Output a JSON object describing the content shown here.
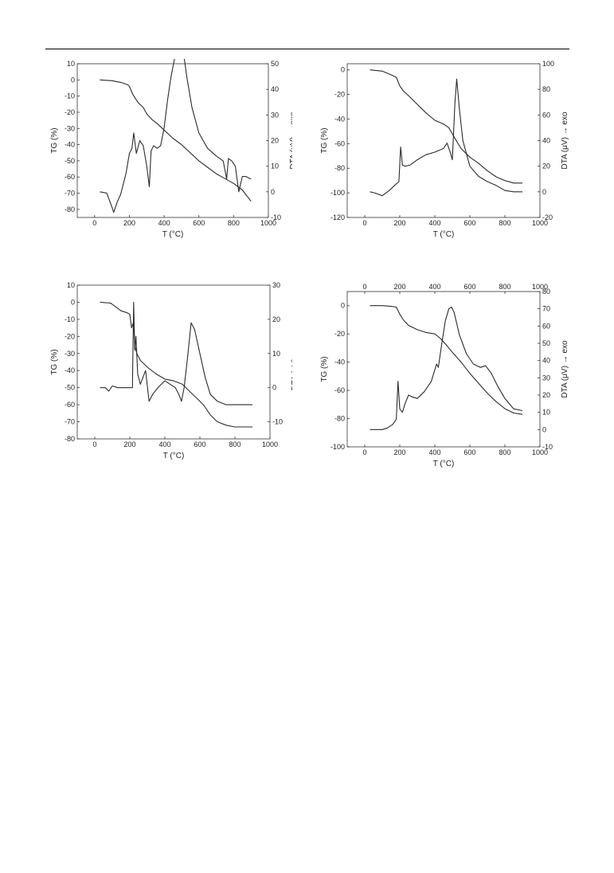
{
  "chart_data": [
    {
      "type": "line",
      "xlabel": "T (°C)",
      "ylabel": "TG (%)",
      "y2label": "DTA (μV)  → exo",
      "xlim": [
        -100,
        1000
      ],
      "ylim": [
        -85,
        10
      ],
      "y2lim": [
        -10,
        50
      ],
      "xticks": [
        0,
        200,
        400,
        600,
        800,
        1000
      ],
      "yticks": [
        10,
        0,
        -10,
        -20,
        -30,
        -40,
        -50,
        -60,
        -70,
        -80
      ],
      "y2ticks": [
        50,
        40,
        30,
        20,
        10,
        0,
        -10
      ],
      "x2_axis": false,
      "series": [
        {
          "axis": "left",
          "x": [
            30,
            100,
            150,
            190,
            200,
            220,
            250,
            280,
            300,
            330,
            360,
            400,
            450,
            500,
            550,
            600,
            650,
            700,
            750,
            800,
            850,
            900
          ],
          "y": [
            0,
            -0.5,
            -1.5,
            -3,
            -4,
            -9,
            -14,
            -17,
            -21,
            -24.5,
            -27,
            -31,
            -36,
            -40,
            -45,
            -50,
            -54,
            -58,
            -61,
            -64,
            -68,
            -75
          ]
        },
        {
          "axis": "right",
          "x": [
            30,
            70,
            100,
            110,
            130,
            150,
            180,
            200,
            215,
            225,
            240,
            260,
            280,
            300,
            315,
            325,
            340,
            360,
            380,
            400,
            420,
            440,
            460,
            480,
            495,
            510,
            530,
            560,
            600,
            650,
            700,
            740,
            760,
            770,
            790,
            810,
            830,
            850,
            870,
            900
          ],
          "y": [
            0,
            -0.5,
            -6,
            -8,
            -4,
            -1,
            7,
            15,
            17,
            23,
            15,
            20,
            18,
            10,
            2,
            16,
            18,
            17,
            18,
            25,
            36,
            45,
            52,
            57,
            59,
            55,
            45,
            33,
            23,
            17,
            14,
            12,
            5,
            13,
            12,
            10,
            0,
            6,
            6,
            5
          ]
        }
      ]
    },
    {
      "type": "line",
      "xlabel": "T (°C)",
      "ylabel": "TG (%)",
      "y2label": "DTA (μV)  → exo",
      "xlim": [
        -100,
        1000
      ],
      "ylim": [
        -120,
        5
      ],
      "y2lim": [
        -20,
        100
      ],
      "xticks": [
        0,
        200,
        400,
        600,
        800,
        1000
      ],
      "yticks": [
        0,
        -20,
        -40,
        -60,
        -80,
        -100,
        -120
      ],
      "y2ticks": [
        100,
        80,
        60,
        40,
        20,
        0,
        -20
      ],
      "x2_axis": false,
      "series": [
        {
          "axis": "left",
          "x": [
            30,
            100,
            150,
            180,
            200,
            220,
            250,
            300,
            350,
            400,
            450,
            480,
            500,
            520,
            550,
            600,
            650,
            700,
            750,
            800,
            850,
            900
          ],
          "y": [
            0,
            -1,
            -4,
            -6,
            -13,
            -17,
            -21,
            -28,
            -35,
            -41,
            -44,
            -47,
            -52,
            -57,
            -64,
            -71,
            -76,
            -82,
            -87,
            -90,
            -92,
            -92
          ]
        },
        {
          "axis": "right",
          "x": [
            30,
            60,
            100,
            140,
            170,
            195,
            205,
            215,
            230,
            260,
            300,
            350,
            400,
            450,
            470,
            490,
            500,
            515,
            525,
            540,
            560,
            600,
            650,
            700,
            750,
            800,
            850,
            900
          ],
          "y": [
            0,
            -1,
            -3,
            1,
            5,
            8,
            35,
            21,
            20,
            21,
            25,
            29,
            31,
            34,
            38,
            30,
            25,
            70,
            88,
            65,
            40,
            20,
            12,
            8,
            5,
            1,
            0,
            0
          ]
        }
      ]
    },
    {
      "type": "line",
      "xlabel": "T (°C)",
      "ylabel": "TG (%)",
      "y2label": "DTA (μV)  → exo",
      "xlim": [
        -100,
        1000
      ],
      "ylim": [
        -80,
        10
      ],
      "y2lim": [
        -15,
        30
      ],
      "xticks": [
        0,
        200,
        400,
        600,
        800,
        1000
      ],
      "yticks": [
        10,
        0,
        -10,
        -20,
        -30,
        -40,
        -50,
        -60,
        -70,
        -80
      ],
      "y2ticks": [
        30,
        20,
        10,
        0,
        -10
      ],
      "x2_axis": false,
      "series": [
        {
          "axis": "left",
          "x": [
            30,
            90,
            110,
            150,
            180,
            200,
            210,
            220,
            230,
            240,
            260,
            300,
            350,
            400,
            450,
            500,
            540,
            580,
            620,
            660,
            700,
            750,
            800,
            850,
            900
          ],
          "y": [
            0,
            -0.5,
            -2,
            -5,
            -6,
            -7,
            -15,
            -12,
            -26,
            -30,
            -34,
            -38,
            -42,
            -45,
            -46,
            -48,
            -52,
            -56,
            -60,
            -66,
            -70,
            -72,
            -73,
            -73,
            -73
          ]
        },
        {
          "axis": "right",
          "x": [
            30,
            60,
            80,
            100,
            130,
            160,
            200,
            215,
            222,
            228,
            235,
            245,
            260,
            275,
            290,
            310,
            330,
            360,
            400,
            430,
            460,
            480,
            495,
            510,
            530,
            550,
            570,
            600,
            630,
            660,
            700,
            750,
            800,
            850,
            900
          ],
          "y": [
            0,
            0,
            -1,
            0.5,
            0,
            0,
            0,
            0,
            25,
            11,
            15,
            4,
            1,
            3,
            5,
            -4,
            -2,
            0,
            2,
            1,
            0,
            -2,
            -4,
            0,
            9,
            19,
            17,
            10,
            3,
            -2,
            -4,
            -5,
            -5,
            -5,
            -5
          ]
        }
      ]
    },
    {
      "type": "line",
      "xlabel": "T (°C)",
      "ylabel": "TG (%)",
      "y2label": "DTA (μV)  → exo",
      "xlim": [
        -100,
        1000
      ],
      "ylim": [
        -100,
        10
      ],
      "y2lim": [
        -10,
        80
      ],
      "xticks": [
        0,
        200,
        400,
        600,
        800,
        1000
      ],
      "yticks": [
        0,
        -20,
        -40,
        -60,
        -80,
        -100
      ],
      "y2ticks": [
        80,
        70,
        60,
        50,
        40,
        30,
        20,
        10,
        0,
        -10
      ],
      "x2_axis": true,
      "x2ticks": [
        0,
        200,
        400,
        600,
        800,
        1000
      ],
      "series": [
        {
          "axis": "left",
          "x": [
            30,
            100,
            150,
            180,
            200,
            220,
            250,
            300,
            350,
            400,
            430,
            460,
            500,
            550,
            600,
            650,
            700,
            750,
            800,
            850,
            900
          ],
          "y": [
            0,
            0,
            -0.5,
            -1,
            -6,
            -10,
            -14,
            -17,
            -19,
            -20,
            -23,
            -27,
            -33,
            -40,
            -48,
            -55,
            -62,
            -68,
            -73,
            -76,
            -77
          ]
        },
        {
          "axis": "right",
          "x": [
            30,
            60,
            100,
            130,
            160,
            180,
            190,
            200,
            215,
            230,
            250,
            270,
            300,
            340,
            380,
            410,
            420,
            440,
            460,
            480,
            495,
            510,
            540,
            580,
            620,
            660,
            690,
            720,
            760,
            800,
            850,
            900
          ],
          "y": [
            0,
            0,
            0,
            1,
            3,
            6,
            28,
            12,
            10,
            15,
            20,
            19,
            18,
            22,
            28,
            38,
            36,
            50,
            63,
            70,
            71,
            68,
            55,
            44,
            38,
            36,
            37,
            33,
            25,
            18,
            12,
            11
          ]
        }
      ]
    }
  ]
}
